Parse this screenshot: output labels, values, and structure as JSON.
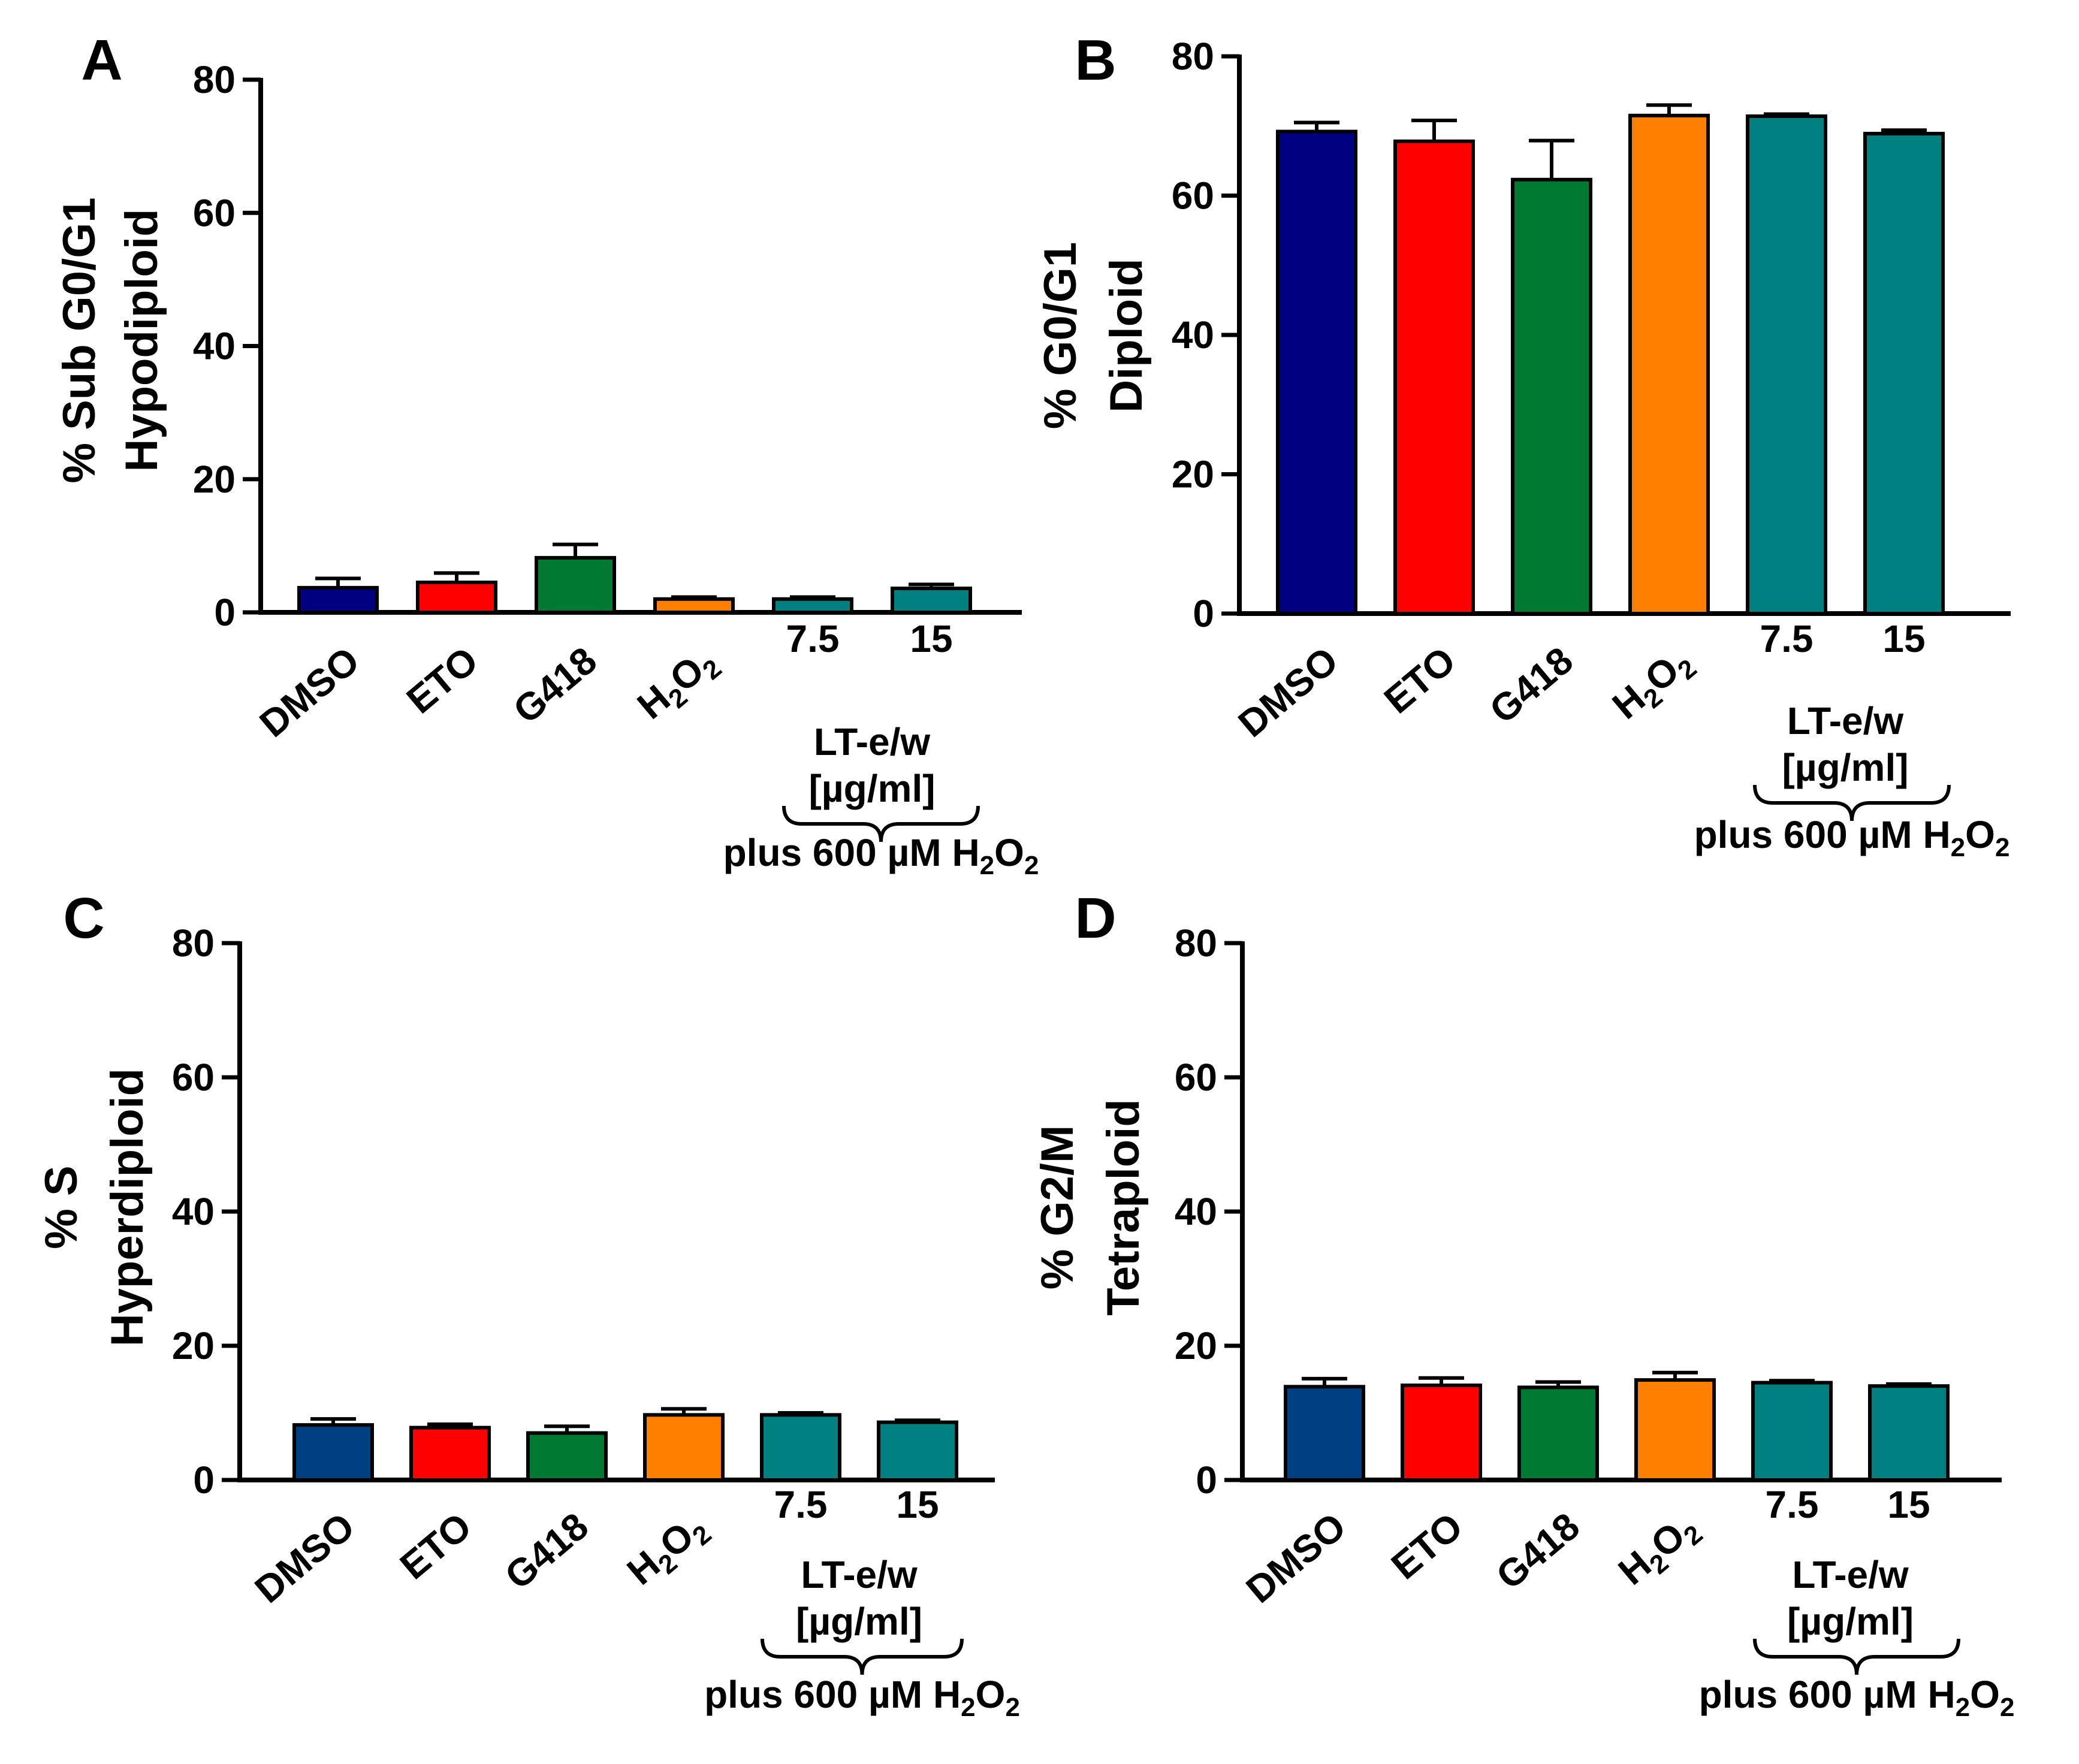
{
  "colors": {
    "dmso_ab": "#000080",
    "dmso_cd": "#003F82",
    "eto": "#FF0000",
    "g418": "#007A33",
    "h2o2": "#FF8000",
    "lt": "#008080",
    "axis": "#000000"
  },
  "shared_labels": {
    "group_label": "LT-e/w",
    "unit_label": "[µg/ml]",
    "plus_prefix": "plus 600 µM H",
    "h": "H",
    "o": "O",
    "two": "2"
  },
  "chart_data": [
    {
      "panel": "A",
      "type": "bar",
      "ylabel_line1": "% Sub G0/G1",
      "ylabel_line2": "Hypodiploid",
      "ylim": [
        0,
        80
      ],
      "yticks": [
        "0",
        "20",
        "40",
        "60",
        "80"
      ],
      "categories": [
        "DMSO",
        "ETO",
        "G418",
        "H2O2",
        "7.5",
        "15"
      ],
      "values": [
        3.7,
        4.5,
        8.2,
        2.0,
        2.0,
        3.6
      ],
      "errors": [
        1.4,
        1.4,
        2.0,
        0.3,
        0.3,
        0.6
      ]
    },
    {
      "panel": "B",
      "type": "bar",
      "ylabel_line1": "% G0/G1",
      "ylabel_line2": "Diploid",
      "ylim": [
        0,
        80
      ],
      "yticks": [
        "0",
        "20",
        "40",
        "60",
        "80"
      ],
      "categories": [
        "DMSO",
        "ETO",
        "G418",
        "H2O2",
        "7.5",
        "15"
      ],
      "values": [
        69.2,
        67.8,
        62.3,
        71.5,
        71.4,
        68.9
      ],
      "errors": [
        1.3,
        3.0,
        5.6,
        1.5,
        0.3,
        0.5
      ]
    },
    {
      "panel": "C",
      "type": "bar",
      "ylabel_line1": "% S",
      "ylabel_line2": "Hyperdiploid",
      "ylim": [
        0,
        80
      ],
      "yticks": [
        "0",
        "20",
        "40",
        "60",
        "80"
      ],
      "categories": [
        "DMSO",
        "ETO",
        "G418",
        "H2O2",
        "7.5",
        "15"
      ],
      "values": [
        8.2,
        7.8,
        7.0,
        9.7,
        9.7,
        8.6
      ],
      "errors": [
        0.9,
        0.5,
        1.0,
        0.9,
        0.3,
        0.3
      ]
    },
    {
      "panel": "D",
      "type": "bar",
      "ylabel_line1": "% G2/M",
      "ylabel_line2": "Tetraploid",
      "ylim": [
        0,
        80
      ],
      "yticks": [
        "0",
        "20",
        "40",
        "60",
        "80"
      ],
      "categories": [
        "DMSO",
        "ETO",
        "G418",
        "H2O2",
        "7.5",
        "15"
      ],
      "values": [
        13.9,
        14.1,
        13.8,
        14.9,
        14.5,
        14.0
      ],
      "errors": [
        1.2,
        1.1,
        0.8,
        1.1,
        0.3,
        0.3
      ]
    }
  ]
}
